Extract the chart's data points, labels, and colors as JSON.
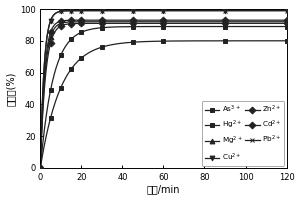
{
  "ylabel": "去除率(%)",
  "xlabel": "时间/min",
  "xlim": [
    0,
    120
  ],
  "ylim": [
    0,
    100
  ],
  "xticks": [
    0,
    20,
    40,
    60,
    80,
    100,
    120
  ],
  "yticks": [
    0,
    20,
    40,
    60,
    80,
    100
  ],
  "series": [
    {
      "label": "As$^{3+}$",
      "marker": "s",
      "color": "#222222",
      "final_val": 80,
      "rise_speed": 0.1
    },
    {
      "label": "Hg$^{2+}$",
      "marker": "s",
      "color": "#222222",
      "final_val": 89,
      "rise_speed": 0.16
    },
    {
      "label": "Mg$^{2+}$",
      "marker": "^",
      "color": "#222222",
      "final_val": 92,
      "rise_speed": 0.45
    },
    {
      "label": "Cu$^{2+}$",
      "marker": "v",
      "color": "#222222",
      "final_val": 99,
      "rise_speed": 0.55
    },
    {
      "label": "Zn$^{2+}$",
      "marker": "D",
      "color": "#222222",
      "final_val": 91,
      "rise_speed": 0.4
    },
    {
      "label": "Cd$^{2+}$",
      "marker": "D",
      "color": "#222222",
      "final_val": 93,
      "rise_speed": 0.5
    },
    {
      "label": "Pb$^{2+}$",
      "marker": "x",
      "color": "#222222",
      "final_val": 99,
      "rise_speed": 0.55
    }
  ],
  "marker_x_points": [
    0,
    5,
    10,
    15,
    20,
    30,
    45,
    60,
    90,
    120
  ],
  "legend_order": [
    0,
    1,
    2,
    3,
    4,
    5,
    6
  ]
}
